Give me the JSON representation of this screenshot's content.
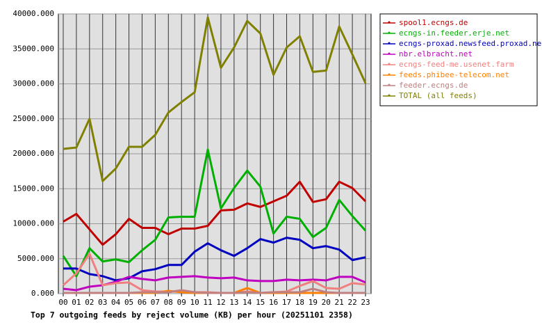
{
  "chart_data": {
    "type": "line",
    "title": "Top 7 outgoing feeds by reject volume (KB) per hour (20251101 2358)",
    "categories": [
      "00",
      "01",
      "02",
      "03",
      "04",
      "05",
      "06",
      "07",
      "08",
      "09",
      "10",
      "11",
      "12",
      "13",
      "14",
      "15",
      "16",
      "17",
      "18",
      "19",
      "20",
      "21",
      "22",
      "23"
    ],
    "ylim": [
      0,
      40000
    ],
    "yticks": [
      {
        "value": 0,
        "label": "0.000"
      },
      {
        "value": 5000,
        "label": "5000.000"
      },
      {
        "value": 10000,
        "label": "10000.000"
      },
      {
        "value": 15000,
        "label": "15000.000"
      },
      {
        "value": 20000,
        "label": "20000.000"
      },
      {
        "value": 25000,
        "label": "25000.000"
      },
      {
        "value": 30000,
        "label": "30000.000"
      },
      {
        "value": 35000,
        "label": "35000.000"
      },
      {
        "value": 40000,
        "label": "40000.000"
      }
    ],
    "grid": true,
    "legend": "right",
    "series": [
      {
        "name": "spool1.ecngs.de",
        "color": "#c00000",
        "values": [
          10300,
          11400,
          9200,
          7000,
          8500,
          10700,
          9400,
          9400,
          8500,
          9300,
          9300,
          9700,
          11900,
          12000,
          12900,
          12400,
          13200,
          14000,
          16000,
          13100,
          13500,
          16000,
          15100,
          13200
        ]
      },
      {
        "name": "ecngs-in.feeder.erje.net",
        "color": "#00b000",
        "values": [
          5400,
          2500,
          6500,
          4600,
          4900,
          4500,
          6200,
          7700,
          10900,
          11000,
          11000,
          20600,
          12200,
          15100,
          17600,
          15300,
          8600,
          11000,
          10700,
          8100,
          9400,
          13400,
          11100,
          9000
        ]
      },
      {
        "name": "ecngs-proxad.newsfeed.proxad.net",
        "color": "#0000c0",
        "values": [
          3600,
          3600,
          2800,
          2500,
          1900,
          2200,
          3200,
          3500,
          4100,
          4100,
          6000,
          7200,
          6200,
          5400,
          6500,
          7800,
          7300,
          8000,
          7700,
          6500,
          6800,
          6300,
          4800,
          5200
        ]
      },
      {
        "name": "nbr.elbracht.net",
        "color": "#c000c0",
        "values": [
          700,
          500,
          1000,
          1200,
          1700,
          2400,
          2100,
          1900,
          2300,
          2400,
          2500,
          2300,
          2200,
          2300,
          1900,
          1800,
          1800,
          2000,
          1900,
          2000,
          1900,
          2400,
          2400,
          1600
        ]
      },
      {
        "name": "ecngs-feed-me.usenet.farm",
        "color": "#f08080",
        "values": [
          1200,
          2900,
          5700,
          1200,
          1500,
          1600,
          500,
          300,
          300,
          400,
          200,
          200,
          100,
          100,
          300,
          100,
          200,
          300,
          1100,
          1800,
          800,
          700,
          1500,
          1300
        ]
      },
      {
        "name": "feeds.phibee-telecom.net",
        "color": "#ff8000",
        "values": [
          100,
          100,
          100,
          100,
          100,
          100,
          100,
          100,
          400,
          200,
          100,
          100,
          100,
          100,
          800,
          100,
          100,
          100,
          100,
          100,
          100,
          100,
          100,
          100
        ]
      },
      {
        "name": "feeder.ecngs.de",
        "color": "#c08080",
        "values": [
          100,
          100,
          100,
          100,
          100,
          100,
          200,
          200,
          200,
          500,
          200,
          100,
          100,
          100,
          200,
          100,
          200,
          200,
          200,
          700,
          200,
          100,
          100,
          100
        ]
      },
      {
        "name": "TOTAL (all feeds)",
        "color": "#808000",
        "values": [
          20700,
          20900,
          25000,
          16100,
          17900,
          21000,
          21000,
          22700,
          25900,
          27400,
          28800,
          39500,
          32300,
          35200,
          39000,
          37200,
          31300,
          35200,
          36800,
          31700,
          31900,
          38200,
          34200,
          30100
        ]
      }
    ]
  }
}
